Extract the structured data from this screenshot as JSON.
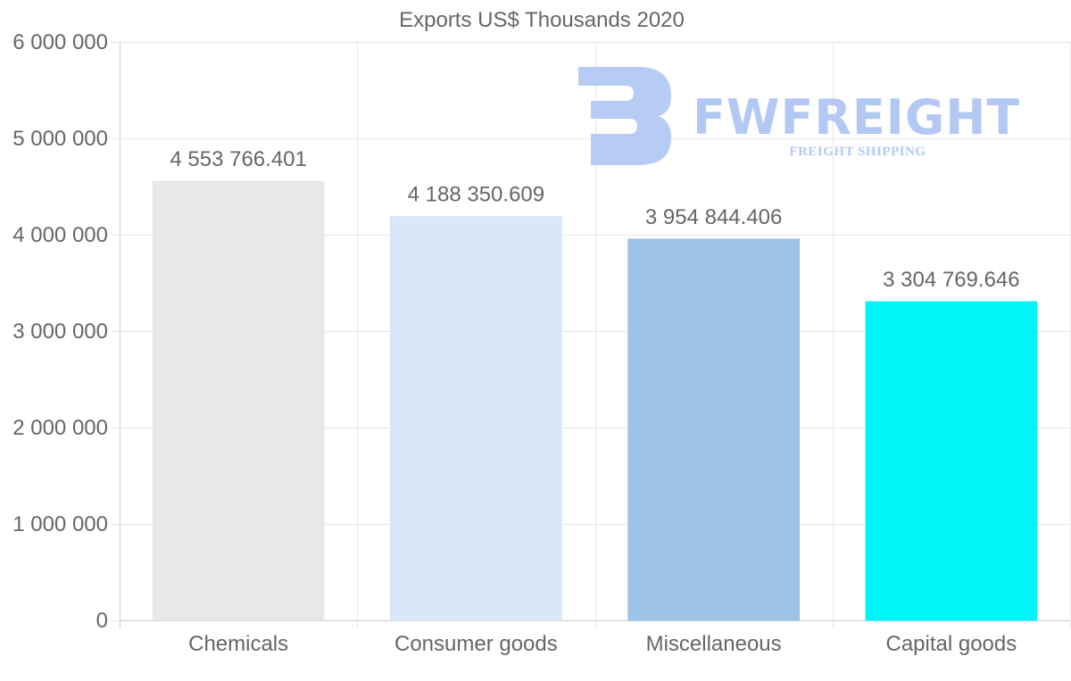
{
  "chart_data": {
    "type": "bar",
    "title": "Exports US$ Thousands 2020",
    "xlabel": "",
    "ylabel": "",
    "categories": [
      "Chemicals",
      "Consumer goods",
      "Miscellaneous",
      "Capital goods"
    ],
    "values": [
      4553766.401,
      4188350.609,
      3954844.406,
      3304769.646
    ],
    "value_labels": [
      "4 553 766.401",
      "4 188 350.609",
      "3 954 844.406",
      "3 304 769.646"
    ],
    "colors": [
      "#e8e8e8",
      "#d8e8f8",
      "#9dc3e6",
      "#00f5f8"
    ],
    "ylim": [
      0,
      6000000
    ],
    "yticks": [
      0,
      1000000,
      2000000,
      3000000,
      4000000,
      5000000,
      6000000
    ],
    "ytick_labels": [
      "0",
      "1 000 000",
      "2 000 000",
      "3 000 000",
      "4 000 000",
      "5 000 000",
      "6 000 000"
    ],
    "grid": true,
    "legend": "none"
  },
  "watermark": {
    "brand": "FWFREIGHT",
    "tagline": "FREIGHT SHIPPING",
    "color": "#b3c9f3"
  }
}
